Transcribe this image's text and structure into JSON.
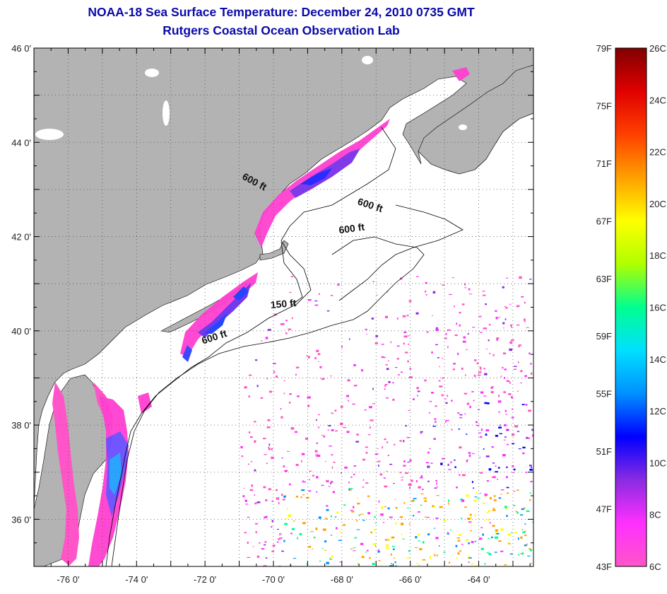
{
  "title": {
    "line1": "NOAA-18 Sea Surface Temperature:  December 24, 2010 0735 GMT",
    "line2": "Rutgers Coastal Ocean Observation Lab"
  },
  "map": {
    "lat_range": [
      35,
      46
    ],
    "lon_range": [
      -77,
      -62.4
    ],
    "lat_ticks": [
      "46 0'",
      "44 0'",
      "42 0'",
      "40 0'",
      "38 0'",
      "36 0'"
    ],
    "lon_ticks": [
      "-76 0'",
      "-74 0'",
      "-72 0'",
      "-70 0'",
      "-68 0'",
      "-66 0'",
      "-64 0'"
    ],
    "land_color": "#b3b3b3",
    "ocean_color": "#ffffff",
    "contour_labels": [
      {
        "text": "600 ft",
        "lon": -70.6,
        "lat": 43.1,
        "angle": 28
      },
      {
        "text": "600 ft",
        "lon": -67.2,
        "lat": 42.6,
        "angle": 18
      },
      {
        "text": "600 ft",
        "lon": -67.7,
        "lat": 42.1,
        "angle": -8
      },
      {
        "text": "150 ft",
        "lon": -69.7,
        "lat": 40.5,
        "angle": -5
      },
      {
        "text": "600 ft",
        "lon": -71.7,
        "lat": 39.8,
        "angle": -18
      }
    ]
  },
  "colorbar": {
    "fahrenheit": [
      "79F",
      "75F",
      "71F",
      "67F",
      "63F",
      "59F",
      "55F",
      "51F",
      "47F",
      "43F"
    ],
    "celsius": [
      "26C",
      "24C",
      "22C",
      "20C",
      "18C",
      "16C",
      "14C",
      "12C",
      "10C",
      "8C",
      "6C"
    ],
    "colors": [
      "#ff55c8",
      "#ff30ff",
      "#8a2be2",
      "#0000ff",
      "#0090ff",
      "#00e0ff",
      "#00ff90",
      "#b0ff00",
      "#ffff00",
      "#ffa000",
      "#ff4000",
      "#e00000",
      "#800000"
    ]
  }
}
